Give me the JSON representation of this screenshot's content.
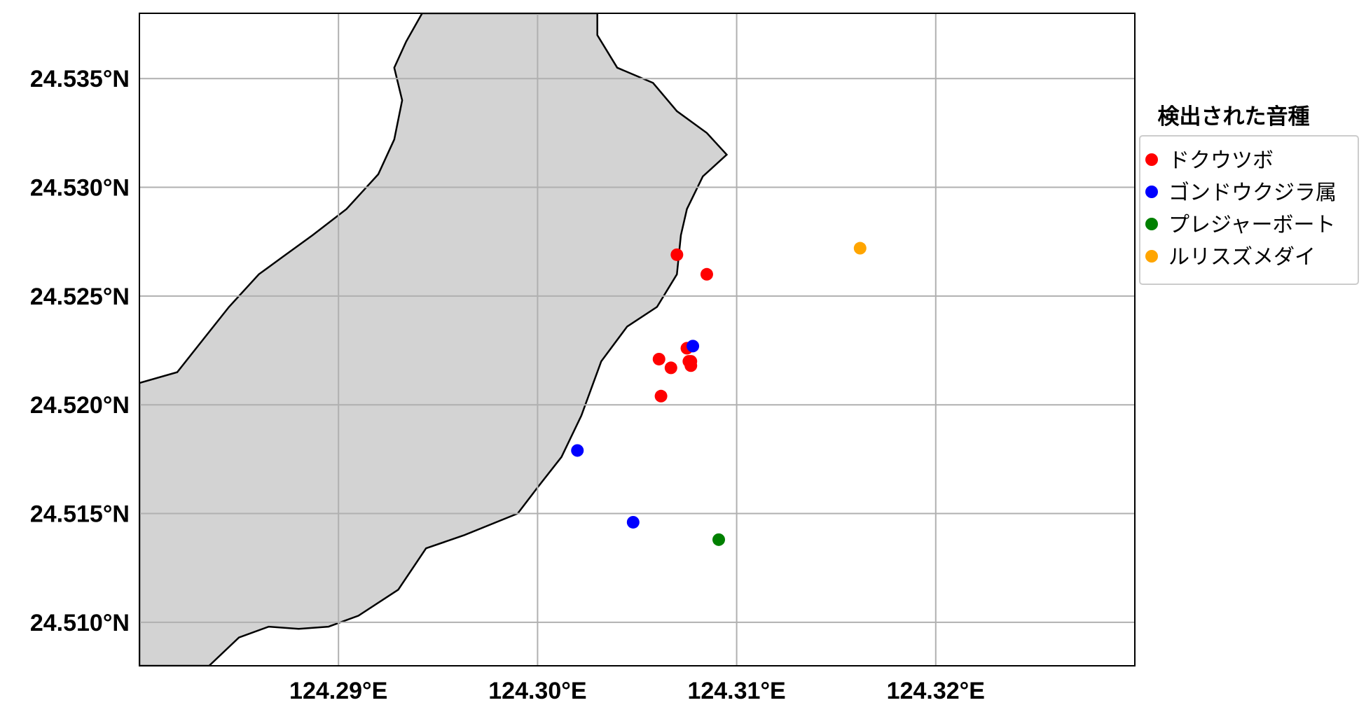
{
  "chart_data": {
    "type": "scatter",
    "title": "",
    "xlabel": "",
    "ylabel": "",
    "xlim": [
      124.28,
      124.33
    ],
    "ylim": [
      24.508,
      24.538
    ],
    "grid": true,
    "x_ticks": [
      124.29,
      124.3,
      124.31,
      124.32
    ],
    "x_tick_labels": [
      "124.29°E",
      "124.30°E",
      "124.31°E",
      "124.32°E"
    ],
    "y_ticks": [
      24.51,
      24.515,
      24.52,
      24.525,
      24.53,
      24.535
    ],
    "y_tick_labels": [
      "24.510°N",
      "24.515°N",
      "24.520°N",
      "24.525°N",
      "24.530°N",
      "24.535°N"
    ],
    "legend": {
      "title": "検出された音種",
      "position": "right"
    },
    "land_color": "#d3d3d3",
    "coastline": [
      [
        124.2942,
        24.538
      ],
      [
        124.2934,
        24.5367
      ],
      [
        124.2928,
        24.5355
      ],
      [
        124.2932,
        24.534
      ],
      [
        124.2928,
        24.5322
      ],
      [
        124.292,
        24.5306
      ],
      [
        124.2904,
        24.529
      ],
      [
        124.2887,
        24.5278
      ],
      [
        124.2872,
        24.5268
      ],
      [
        124.286,
        24.526
      ],
      [
        124.2845,
        24.5245
      ],
      [
        124.2832,
        24.523
      ],
      [
        124.2819,
        24.5215
      ],
      [
        124.28,
        24.521
      ],
      [
        124.28,
        24.508
      ],
      [
        124.2835,
        24.508
      ],
      [
        124.285,
        24.5093
      ],
      [
        124.2865,
        24.5098
      ],
      [
        124.288,
        24.5097
      ],
      [
        124.2895,
        24.5098
      ],
      [
        124.291,
        24.5103
      ],
      [
        124.293,
        24.5115
      ],
      [
        124.2944,
        24.5134
      ],
      [
        124.2963,
        24.514
      ],
      [
        124.299,
        24.515
      ],
      [
        124.3,
        24.5162
      ],
      [
        124.3012,
        24.5176
      ],
      [
        124.3022,
        24.5195
      ],
      [
        124.3032,
        24.522
      ],
      [
        124.3045,
        24.5236
      ],
      [
        124.306,
        24.5245
      ],
      [
        124.307,
        24.526
      ],
      [
        124.3072,
        24.5278
      ],
      [
        124.3075,
        24.529
      ],
      [
        124.3083,
        24.5305
      ],
      [
        124.3095,
        24.5315
      ],
      [
        124.3085,
        24.5325
      ],
      [
        124.307,
        24.5335
      ],
      [
        124.3058,
        24.5348
      ],
      [
        124.304,
        24.5355
      ],
      [
        124.303,
        24.537
      ],
      [
        124.303,
        24.538
      ]
    ],
    "series": [
      {
        "name": "ドクウツボ",
        "color": "#ff0000",
        "x": [
          124.307,
          124.3085,
          124.3061,
          124.3067,
          124.3075,
          124.3076,
          124.3077,
          124.3077,
          124.3062
        ],
        "y": [
          24.5269,
          24.526,
          24.5221,
          24.5217,
          24.5226,
          24.522,
          24.5218,
          24.522,
          24.5204
        ]
      },
      {
        "name": "ゴンドウクジラ属",
        "color": "#0000ff",
        "x": [
          124.3078,
          124.302,
          124.3048
        ],
        "y": [
          24.5227,
          24.5179,
          24.5146
        ]
      },
      {
        "name": "プレジャーボート",
        "color": "#008000",
        "x": [
          124.3091
        ],
        "y": [
          24.5138
        ]
      },
      {
        "name": "ルリスズメダイ",
        "color": "#ffa500",
        "x": [
          124.3162
        ],
        "y": [
          24.5272
        ]
      }
    ]
  }
}
